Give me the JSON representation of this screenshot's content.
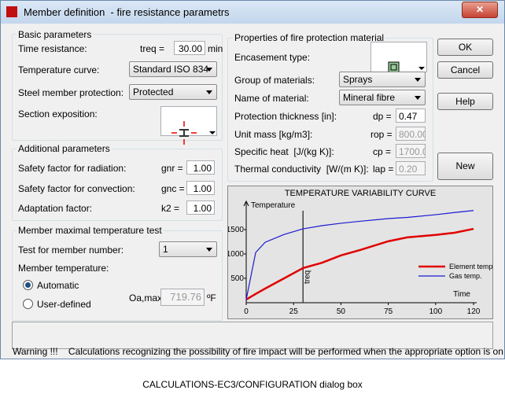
{
  "window": {
    "title": "Member definition  - fire resistance parametrs"
  },
  "basic_parameters": {
    "title": "Basic parameters",
    "time_resistance": {
      "label": "Time resistance:",
      "symbol": "treq =",
      "value": "30.00",
      "unit": "min"
    },
    "temperature_curve": {
      "label": "Temperature curve:",
      "value": "Standard ISO 834"
    },
    "steel_member_protection": {
      "label": "Steel member protection:",
      "value": "Protected"
    },
    "section_exposition": {
      "label": "Section exposition:"
    }
  },
  "additional_parameters": {
    "title": "Additional parameters",
    "rows": [
      {
        "label": "Safety factor for radiation:",
        "symbol": "gnr =",
        "value": "1.00"
      },
      {
        "label": "Safety factor for convection:",
        "symbol": "gnc =",
        "value": "1.00"
      },
      {
        "label": "Adaptation factor:",
        "symbol": "k2 =",
        "value": "1.00"
      }
    ]
  },
  "temperature_test": {
    "title": "Member maximal temperature test",
    "test_label": "Test for member number:",
    "test_value": "1",
    "member_temperature": "Member temperature:",
    "options": [
      "Automatic",
      "User-defined"
    ],
    "symbol": "Oa,max =",
    "value": "719.76",
    "unit": "ºF"
  },
  "protection_material": {
    "title": "Properties of fire protection material",
    "encasement_type": "Encasement type:",
    "rows": [
      {
        "label": "Group of materials:",
        "value": "Sprays"
      },
      {
        "label": "Name of material:",
        "value": "Mineral fibre"
      }
    ],
    "params": [
      {
        "label": "Protection thickness [in]:",
        "symbol": "dp =",
        "value": "0.47"
      },
      {
        "label": "Unit mass [kg/m3]:",
        "symbol": "rop =",
        "value": "800.00"
      },
      {
        "label": "Specific heat  [J/(kg K)]:",
        "symbol": "cp =",
        "value": "1700.00"
      },
      {
        "label": "Thermal conductivity  [W/(m K)]:",
        "symbol": "lap =",
        "value": "0.20"
      }
    ]
  },
  "buttons": [
    "OK",
    "Cancel",
    "Help",
    "New material"
  ],
  "warning": [
    "Warning !!!    Calculations recognizing the possibility of fire impact will be performed when the appropriate option is on in the",
    "CALCULATIONS-EC3/CONFIGURATION dialog box"
  ],
  "chart_data": {
    "type": "line",
    "title": "TEMPERATURE VARIABILITY CURVE",
    "y_label": "Temperature",
    "x_label": "Time",
    "x": [
      0,
      5,
      10,
      20,
      30,
      40,
      50,
      60,
      75,
      85,
      100,
      110,
      120
    ],
    "series": [
      {
        "name": "Element temp.",
        "color": "#e00000",
        "values": [
          65,
          180,
          290,
          500,
          710,
          820,
          970,
          1080,
          1260,
          1340,
          1390,
          1435,
          1515
        ]
      },
      {
        "name": "Gas temp.",
        "color": "#1a1ad0",
        "values": [
          65,
          1030,
          1240,
          1400,
          1515,
          1580,
          1630,
          1670,
          1725,
          1750,
          1805,
          1850,
          1890
        ]
      }
    ],
    "xlim": [
      0,
      120
    ],
    "xticks": [
      0,
      25,
      50,
      75,
      100,
      120
    ],
    "ylim": [
      0,
      2080
    ],
    "yticks": [
      500,
      1000,
      1500
    ],
    "annotations": [
      {
        "text": "treq",
        "x": 30
      }
    ],
    "legend": "right"
  }
}
